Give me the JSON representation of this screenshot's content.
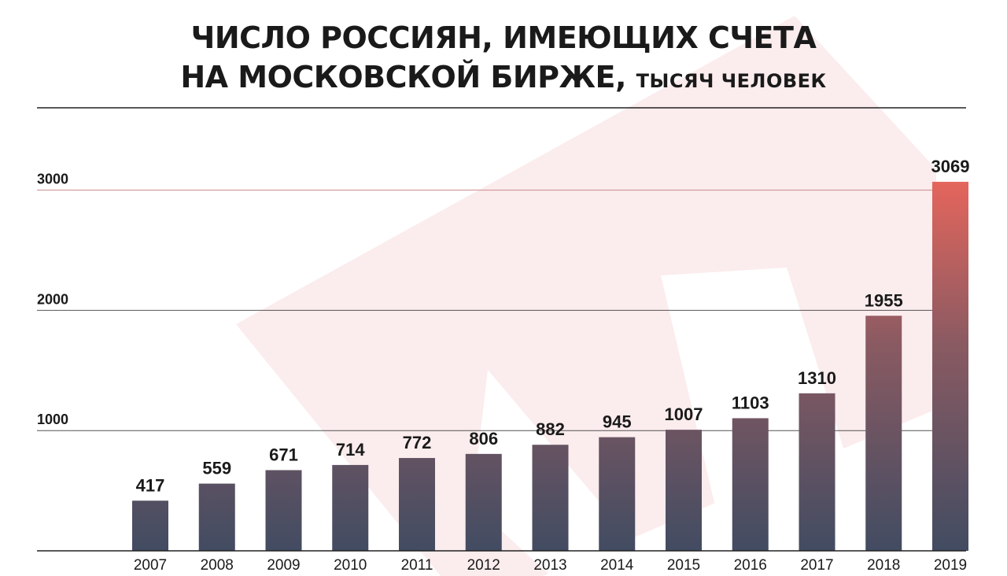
{
  "chart_data": {
    "type": "bar",
    "title_line1": "ЧИСЛО РОССИЯН, ИМЕЮЩИХ СЧЕТА",
    "title_line2": "НА МОСКОВСКОЙ БИРЖЕ,",
    "unit": "ТЫСЯЧ ЧЕЛОВЕК",
    "categories": [
      "2007",
      "2008",
      "2009",
      "2010",
      "2011",
      "2012",
      "2013",
      "2014",
      "2015",
      "2016",
      "2017",
      "2018",
      "2019"
    ],
    "values": [
      417,
      559,
      671,
      714,
      772,
      806,
      882,
      945,
      1007,
      1103,
      1310,
      1955,
      3069
    ],
    "value_labels": [
      "417",
      "559",
      "671",
      "714",
      "772",
      "806",
      "882",
      "945",
      "1007",
      "1103",
      "1310",
      "1955",
      "3069"
    ],
    "y_ticks": [
      "1000",
      "2000",
      "3000"
    ],
    "ylim": [
      0,
      3140
    ],
    "grid": true,
    "legend": "none",
    "colors": {
      "bar_bottom": "#424c62",
      "bar_mid": "#8a5a62",
      "bar_top": "#e8665c",
      "watermark": "#f8e6e6",
      "grid_red": "#c98a8a",
      "grid_dark": "#555555",
      "axis": "#222222"
    }
  }
}
